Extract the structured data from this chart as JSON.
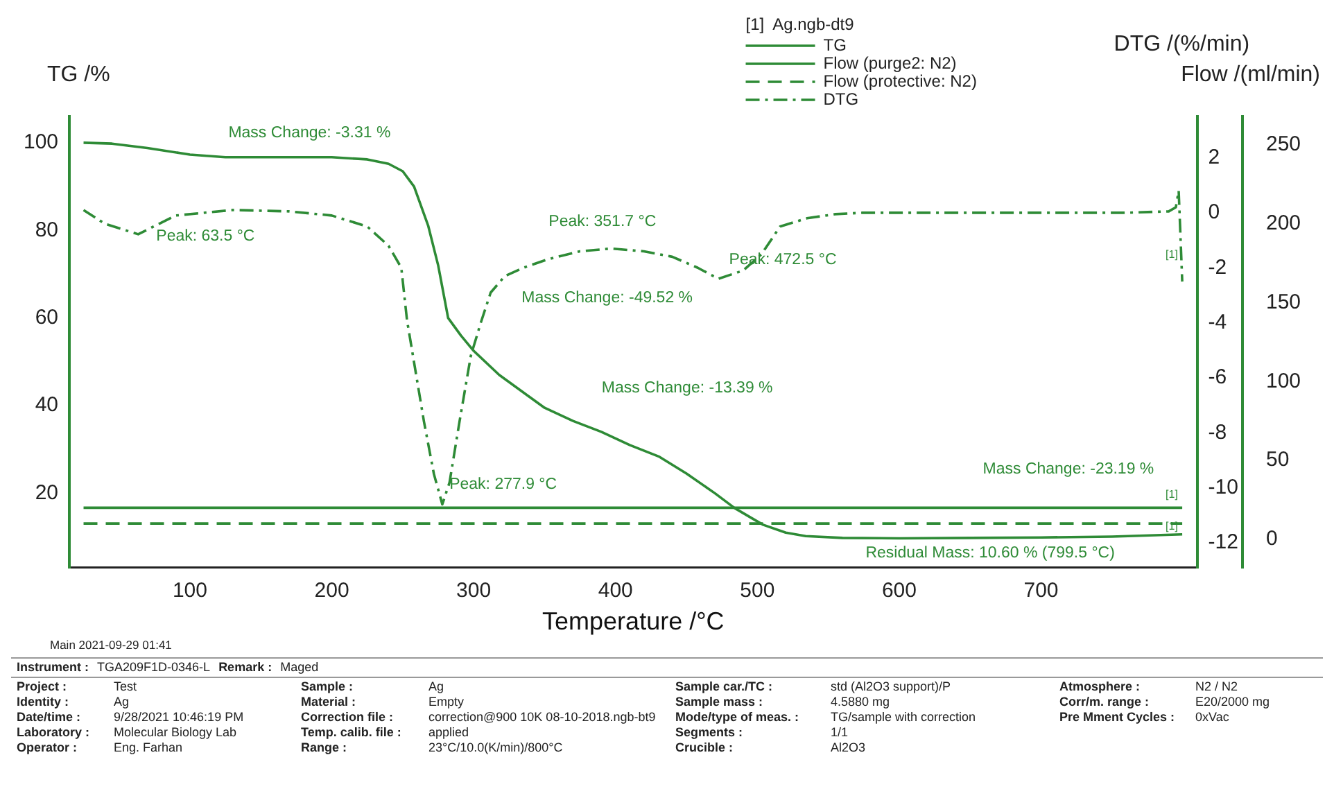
{
  "chart_data": {
    "type": "line",
    "xlabel": "Temperature /°C",
    "ylabel": "TG /%",
    "y2label": "DTG /(%/min)",
    "y3label": "Flow /(ml/min)",
    "legend_title": "[1]  Ag.ngb-dt9",
    "legend": "top",
    "marker": "none",
    "xlim": [
      15,
      810
    ],
    "xticks": [
      100,
      200,
      300,
      400,
      500,
      600,
      700
    ],
    "ylim": [
      3,
      106
    ],
    "yticks": [
      20,
      40,
      60,
      80,
      100
    ],
    "y2lim": [
      -12.9,
      3.5
    ],
    "y2ticks": [
      -12,
      -10,
      -8,
      -6,
      -4,
      -2,
      0,
      2
    ],
    "y3lim": [
      -18,
      268
    ],
    "y3ticks": [
      0,
      50,
      100,
      150,
      200,
      250
    ],
    "series": [
      {
        "name": "TG",
        "color": "#2e8b36",
        "line_style": "solid",
        "x": [
          25,
          45,
          70,
          100,
          125,
          150,
          200,
          225,
          240,
          250,
          258,
          268,
          275,
          282,
          291,
          300,
          318,
          335,
          350,
          370,
          390,
          410,
          431,
          450,
          470,
          484,
          495,
          504,
          520,
          534,
          560,
          600,
          650,
          700,
          750,
          799.5
        ],
        "values": [
          100,
          99.8,
          98.8,
          97.3,
          96.7,
          96.7,
          96.7,
          96.2,
          95.2,
          93.5,
          90,
          81,
          72,
          60,
          56,
          52.5,
          47,
          43,
          39.5,
          36.5,
          34,
          31,
          28.3,
          24.5,
          20,
          16.6,
          14.5,
          12.8,
          11,
          10.2,
          9.8,
          9.7,
          9.8,
          9.9,
          10.1,
          10.6
        ]
      },
      {
        "name": "Flow (purge2: N2)",
        "color": "#2e8b36",
        "line_style": "solid",
        "axis": "y3",
        "x": [
          25,
          799.5
        ],
        "values": [
          20,
          20
        ]
      },
      {
        "name": "Flow (protective: N2)",
        "color": "#2e8b36",
        "line_style": "dashed",
        "axis": "y3",
        "x": [
          25,
          799.5
        ],
        "values": [
          10,
          10
        ]
      },
      {
        "name": "DTG",
        "color": "#2e8b36",
        "line_style": "dashdot",
        "axis": "y2",
        "x": [
          25,
          40,
          63.5,
          90,
          130,
          170,
          200,
          225,
          240,
          249,
          253,
          265,
          272,
          277.9,
          283,
          290,
          298,
          305,
          312,
          322,
          335,
          351.7,
          375,
          397,
          420,
          440,
          458,
          472.5,
          490,
          503,
          516,
          535,
          555,
          574,
          620,
          700,
          760,
          790,
          795,
          797,
          798,
          799.5
        ],
        "values": [
          0.1,
          -0.4,
          -0.78,
          -0.1,
          0.1,
          0.05,
          -0.1,
          -0.5,
          -1.2,
          -2.0,
          -3.9,
          -7.6,
          -9.5,
          -10.6,
          -9.8,
          -7.6,
          -5.2,
          -4.0,
          -2.9,
          -2.3,
          -2.0,
          -1.7,
          -1.4,
          -1.3,
          -1.4,
          -1.6,
          -2.0,
          -2.4,
          -2.1,
          -1.5,
          -0.5,
          -0.2,
          -0.05,
          0.0,
          0.0,
          0.0,
          0.0,
          0.05,
          0.2,
          0.8,
          -0.5,
          -2.5
        ]
      }
    ],
    "annotations": [
      "Mass Change: -3.31 %",
      "Peak: 63.5 °C",
      "Peak: 351.7 °C",
      "Mass Change: -49.52 %",
      "Peak: 472.5 °C",
      "Mass Change: -13.39 %",
      "Peak: 277.9 °C",
      "Mass Change: -23.19 %",
      "Residual Mass: 10.60 % (799.5 °C)",
      "[1]",
      "[1]",
      "[1]",
      "Main   2021-09-29 01:41",
      "Instrument :",
      "TGA209F1D-0346-L",
      "Remark :",
      "Maged",
      "Project :",
      "Test",
      "Identity :",
      "Ag",
      "Date/time :",
      "9/28/2021 10:46:19 PM",
      "Laboratory :",
      "Molecular Biology Lab",
      "Operator :",
      "Eng. Farhan",
      "Sample :",
      "Ag",
      "Material :",
      "Empty",
      "Correction file :",
      "correction@900 10K 08-10-2018.ngb-bt9",
      "Temp. calib. file :",
      "applied",
      "Range :",
      "23°C/10.0(K/min)/800°C",
      "Sample car./TC :",
      "std (Al2O3 support)/P",
      "Sample mass :",
      "4.5880 mg",
      "Mode/type of meas. :",
      "TG/sample with correction",
      "Segments :",
      "1/1",
      "Crucible :",
      "Al2O3",
      "Atmosphere :",
      "N2 / N2",
      "Corr/m. range :",
      "E20/2000 mg",
      "Pre Mment Cycles :",
      "0xVac"
    ]
  }
}
